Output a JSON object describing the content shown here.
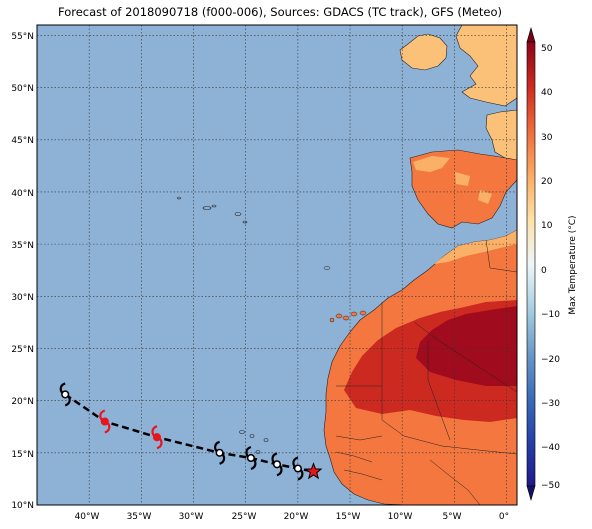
{
  "title": "Forecast of 2018090718 (f000-006), Sources: GDACS (TC track), GFS (Meteo)",
  "map": {
    "lat_labels": [
      "55°N",
      "50°N",
      "45°N",
      "40°N",
      "35°N",
      "30°N",
      "25°N",
      "20°N",
      "15°N",
      "10°N"
    ],
    "lon_labels": [
      "40°W",
      "35°W",
      "30°W",
      "25°W",
      "20°W",
      "15°W",
      "10°W",
      "5°W",
      "0°"
    ],
    "ocean_color": "#8eb1d6",
    "extent_lon": [
      -45,
      1
    ],
    "extent_lat": [
      10,
      56
    ]
  },
  "colorbar": {
    "label": "Max Temperature (°C)",
    "ticks": [
      "50",
      "40",
      "30",
      "20",
      "10",
      "0",
      "−10",
      "−20",
      "−30",
      "−40",
      "−50"
    ],
    "range": [
      -50,
      50
    ]
  },
  "track": {
    "points": [
      {
        "lon": -42.3,
        "lat": 20.6,
        "color": "#000000",
        "icon": "storm-icon"
      },
      {
        "lon": -38.5,
        "lat": 18.0,
        "color": "#e8151b",
        "icon": "hurricane-icon"
      },
      {
        "lon": -33.5,
        "lat": 16.5,
        "color": "#e8151b",
        "icon": "hurricane-icon"
      },
      {
        "lon": -27.5,
        "lat": 15.0,
        "color": "#000000",
        "icon": "storm-icon"
      },
      {
        "lon": -24.5,
        "lat": 14.5,
        "color": "#000000",
        "icon": "storm-icon"
      },
      {
        "lon": -22.0,
        "lat": 13.9,
        "color": "#000000",
        "icon": "storm-icon"
      },
      {
        "lon": -20.0,
        "lat": 13.5,
        "color": "#000000",
        "icon": "storm-icon"
      }
    ],
    "current": {
      "lon": -18.5,
      "lat": 13.2,
      "color": "#e8151b",
      "icon": "star-icon"
    }
  }
}
